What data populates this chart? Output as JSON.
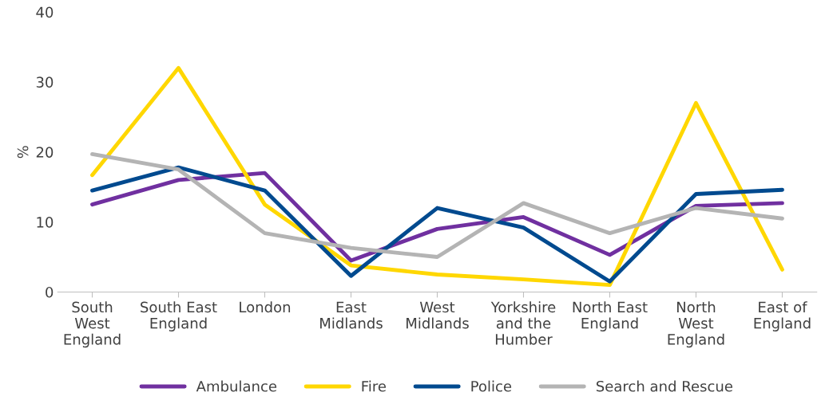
{
  "chart_data": {
    "type": "line",
    "categories": [
      "South\nWest\nEngland",
      "South East\nEngland",
      "London",
      "East\nMidlands",
      "West\nMidlands",
      "Yorkshire\nand the\nHumber",
      "North East\nEngland",
      "North\nWest\nEngland",
      "East of\nEngland"
    ],
    "ylabel": "%",
    "ylim": [
      0,
      40
    ],
    "yticks": [
      0,
      10,
      20,
      30,
      40
    ],
    "grid": false,
    "legend": "bottom",
    "marker": "none",
    "line_style": "solid",
    "series": [
      {
        "name": "Ambulance",
        "color": "#7030a0",
        "values": [
          12.5,
          16,
          17,
          4.5,
          9,
          10.7,
          5.3,
          12.3,
          12.7
        ]
      },
      {
        "name": "Fire",
        "color": "#ffd700",
        "values": [
          16.7,
          32,
          12.5,
          3.8,
          2.5,
          1.8,
          1,
          27,
          3.2
        ]
      },
      {
        "name": "Police",
        "color": "#004a8f",
        "values": [
          14.5,
          17.8,
          14.5,
          2.3,
          12,
          9.2,
          1.5,
          14,
          14.6
        ]
      },
      {
        "name": "Search and Rescue",
        "color": "#b4b4b4",
        "values": [
          19.7,
          17.5,
          8.4,
          6.3,
          5,
          12.7,
          8.4,
          12,
          10.5
        ]
      }
    ]
  }
}
